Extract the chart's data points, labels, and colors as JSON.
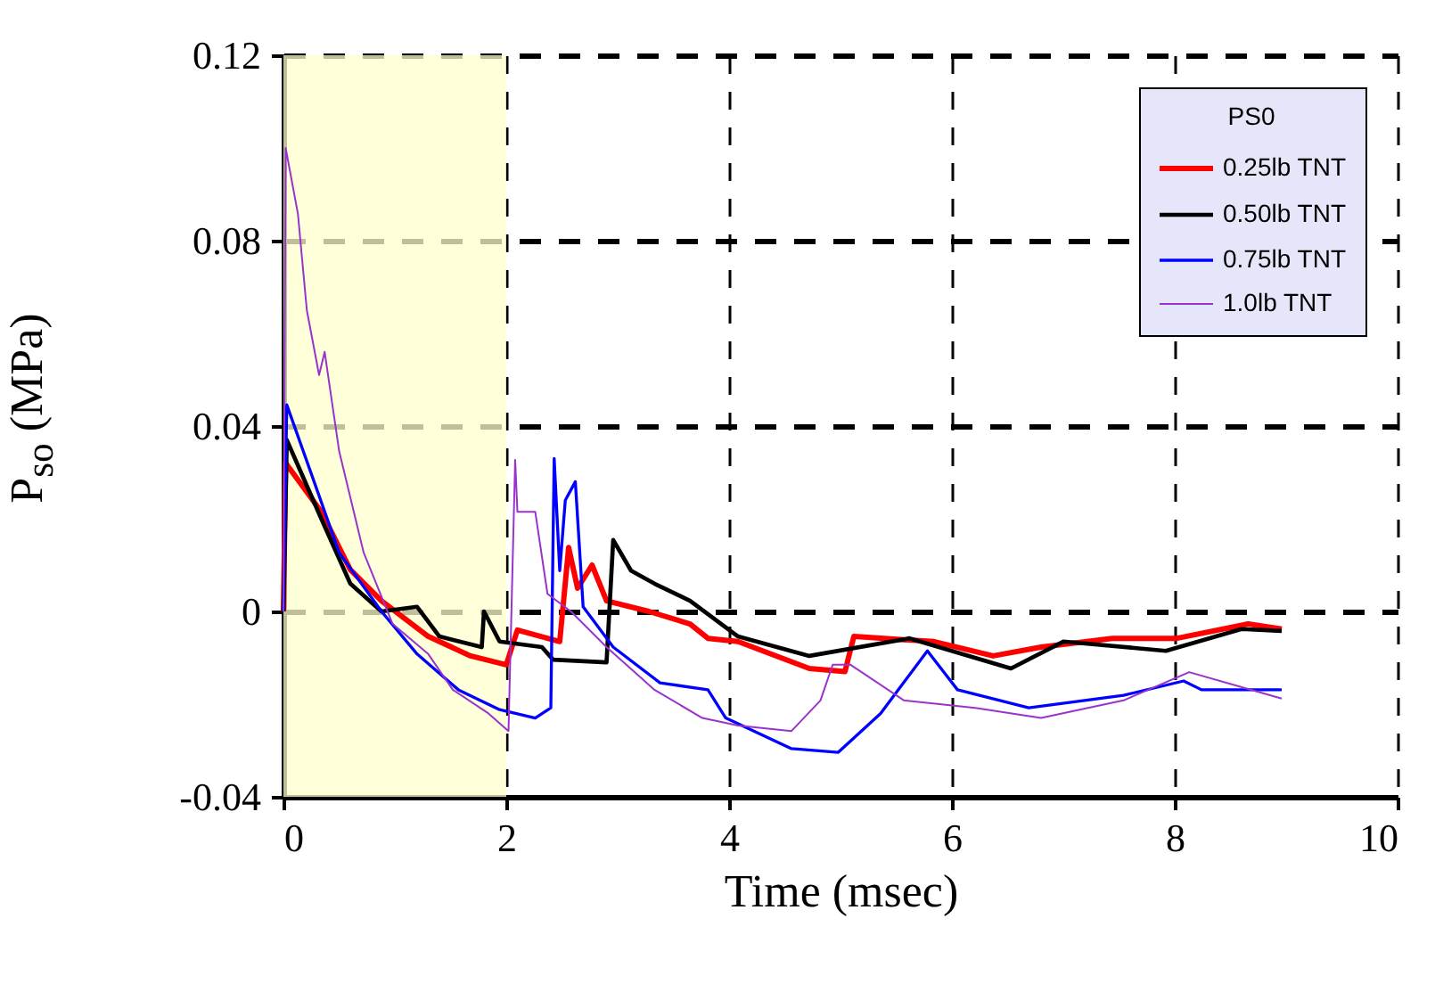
{
  "chart_data": {
    "type": "line",
    "xlabel": "Time (msec)",
    "ylabel": "P$_{so}$ (MPa)",
    "legend_title": "PS0",
    "legend": "top right",
    "grid": true,
    "xlim": [
      0,
      10
    ],
    "xticks": [
      0,
      2,
      4,
      6,
      8,
      10
    ],
    "ylim": [
      -0.04,
      0.12
    ],
    "yticks": [
      -0.04,
      0,
      0.04,
      0.08,
      0.12
    ],
    "bands": [
      {
        "axis": "x",
        "from": 0,
        "to": 2,
        "color": "#ffffcc"
      }
    ],
    "series": [
      {
        "name": "0.25lb TNT",
        "color": "#ff0000",
        "x": [
          0,
          0.02,
          0.34,
          0.6,
          0.88,
          1.3,
          1.68,
          2.0,
          2.1,
          2.48,
          2.56,
          2.64,
          2.77,
          2.9,
          3.28,
          3.65,
          3.81,
          4.08,
          4.72,
          5.04,
          5.12,
          5.84,
          6.37,
          6.8,
          7.44,
          8.02,
          8.66,
          8.96
        ],
        "values": [
          0,
          0.032,
          0.0215,
          0.009,
          0.0023,
          -0.0054,
          -0.0096,
          -0.0115,
          -0.004,
          -0.0065,
          0.0138,
          0.005,
          0.01,
          0.0023,
          0,
          -0.0027,
          -0.0058,
          -0.0065,
          -0.0123,
          -0.013,
          -0.0054,
          -0.0065,
          -0.0096,
          -0.0077,
          -0.0058,
          -0.0058,
          -0.0027,
          -0.0038
        ]
      },
      {
        "name": "0.50lb TNT",
        "color": "#000000",
        "x": [
          0,
          0.03,
          0.34,
          0.6,
          0.88,
          1.2,
          1.4,
          1.78,
          1.8,
          1.94,
          2.32,
          2.42,
          2.9,
          2.96,
          3.12,
          3.33,
          3.65,
          4.08,
          4.72,
          5.62,
          6.53,
          7.0,
          7.92,
          8.6,
          8.96
        ],
        "values": [
          0,
          0.037,
          0.02,
          0.006,
          0,
          0.001,
          -0.0054,
          -0.0077,
          0,
          -0.0065,
          -0.0077,
          -0.0104,
          -0.011,
          0.0154,
          0.0088,
          0.006,
          0.0023,
          -0.0054,
          -0.0096,
          -0.0058,
          -0.0123,
          -0.0065,
          -0.0085,
          -0.0038,
          -0.0042
        ]
      },
      {
        "name": "0.75lb TNT",
        "color": "#0000ff",
        "x": [
          0,
          0.03,
          0.29,
          0.5,
          0.88,
          1.2,
          1.57,
          1.94,
          2.26,
          2.4,
          2.43,
          2.48,
          2.53,
          2.62,
          2.69,
          2.96,
          3.38,
          3.81,
          3.97,
          4.56,
          4.98,
          5.36,
          5.78,
          6.05,
          6.69,
          7.54,
          8.08,
          8.24,
          8.96
        ],
        "values": [
          0,
          0.0446,
          0.027,
          0.0127,
          0,
          -0.0092,
          -0.0169,
          -0.0212,
          -0.023,
          -0.0208,
          0.033,
          0.0088,
          0.024,
          0.028,
          0.001,
          -0.0077,
          -0.0154,
          -0.0169,
          -0.023,
          -0.0296,
          -0.0304,
          -0.022,
          -0.0085,
          -0.0169,
          -0.0208,
          -0.0181,
          -0.015,
          -0.0169,
          -0.0169
        ]
      },
      {
        "name": "1.0lb TNT",
        "color": "#9933cc",
        "x": [
          0,
          0.02,
          0.13,
          0.21,
          0.32,
          0.37,
          0.5,
          0.72,
          0.98,
          1.3,
          1.52,
          1.84,
          2.02,
          2.08,
          2.1,
          2.26,
          2.37,
          2.58,
          2.9,
          3.33,
          3.76,
          4.08,
          4.56,
          4.82,
          4.93,
          5.09,
          5.57,
          6.21,
          6.8,
          7.54,
          8.13,
          8.96
        ],
        "values": [
          0,
          0.1,
          0.0858,
          0.065,
          0.051,
          0.056,
          0.0346,
          0.0127,
          -0.0027,
          -0.0092,
          -0.0169,
          -0.022,
          -0.0258,
          0.0327,
          0.0215,
          0.0215,
          0.0038,
          0,
          -0.0077,
          -0.0169,
          -0.023,
          -0.0246,
          -0.0258,
          -0.0192,
          -0.0115,
          -0.0115,
          -0.0192,
          -0.0208,
          -0.023,
          -0.0192,
          -0.0131,
          -0.0188
        ]
      }
    ]
  }
}
